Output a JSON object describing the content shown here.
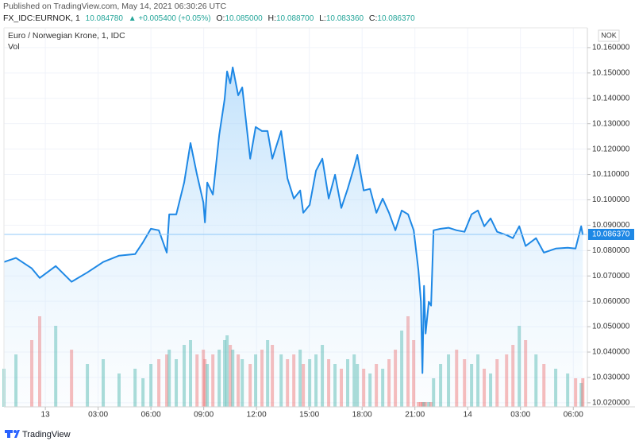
{
  "header": {
    "published": "Published on TradingView.com, May 14, 2021 06:30:26 UTC",
    "symbol": "FX_IDC:EURNOK, 1",
    "last": "10.084780",
    "change": "▲ +0.005400 (+0.05%)",
    "ohlc": [
      {
        "label": "O:",
        "value": "10.085000"
      },
      {
        "label": "H:",
        "value": "10.088700"
      },
      {
        "label": "L:",
        "value": "10.083360"
      },
      {
        "label": "C:",
        "value": "10.086370"
      }
    ]
  },
  "chart_data": {
    "type": "area",
    "currency": "NOK",
    "volume_label": "Vol",
    "x": [
      -2.35,
      -1.67,
      -0.77,
      -0.32,
      0.59,
      1.49,
      2.39,
      3.29,
      4.19,
      5.1,
      5.55,
      6.0,
      6.45,
      6.9,
      7.04,
      7.44,
      7.89,
      8.25,
      8.62,
      8.98,
      9.07,
      9.2,
      9.52,
      9.88,
      10.19,
      10.33,
      10.51,
      10.65,
      10.96,
      11.19,
      11.64,
      11.95,
      12.31,
      12.63,
      12.9,
      13.4,
      13.76,
      14.12,
      14.48,
      14.66,
      15.02,
      15.38,
      15.74,
      16.1,
      16.46,
      16.82,
      17.18,
      17.55,
      17.73,
      18.09,
      18.45,
      18.81,
      19.17,
      19.53,
      19.89,
      20.25,
      20.61,
      20.93,
      21.2,
      21.34,
      21.43,
      21.52,
      21.61,
      21.79,
      21.92,
      22.06,
      22.46,
      22.91,
      23.37,
      23.82,
      24.22,
      24.58,
      24.94,
      25.3,
      25.67,
      26.21,
      26.57,
      26.93,
      27.29,
      27.88,
      28.33,
      29.0,
      29.68,
      30.13,
      30.45,
      30.54
    ],
    "series": [
      {
        "name": "Euro / Norwegian Krone, 1, IDC",
        "color": "#1e88e5",
        "values": [
          10.0755,
          10.0771,
          10.073,
          10.0692,
          10.0739,
          10.0677,
          10.0714,
          10.0755,
          10.078,
          10.0786,
          10.0833,
          10.0886,
          10.088,
          10.0792,
          10.0943,
          10.0943,
          10.1068,
          10.1224,
          10.1099,
          10.099,
          10.0911,
          10.1068,
          10.1021,
          10.1256,
          10.1397,
          10.1506,
          10.1459,
          10.1522,
          10.1412,
          10.1443,
          10.1162,
          10.1287,
          10.1271,
          10.1271,
          10.1162,
          10.1271,
          10.1084,
          10.1005,
          10.1037,
          10.0949,
          10.098,
          10.1115,
          10.1162,
          10.1005,
          10.1099,
          10.0968,
          10.1043,
          10.113,
          10.1177,
          10.1037,
          10.1043,
          10.0949,
          10.1005,
          10.0949,
          10.088,
          10.0958,
          10.0943,
          10.088,
          10.0724,
          10.0598,
          10.0317,
          10.0661,
          10.0473,
          10.0598,
          10.0583,
          10.088,
          10.0886,
          10.089,
          10.088,
          10.0874,
          10.0943,
          10.0958,
          10.0896,
          10.0927,
          10.0874,
          10.0861,
          10.0849,
          10.0896,
          10.0818,
          10.0849,
          10.0792,
          10.0808,
          10.0811,
          10.0808,
          10.0896,
          10.0861
        ]
      }
    ],
    "volume": {
      "up_color": "#26a69a",
      "down_color": "#ef5350",
      "vlim": [
        0,
        100
      ],
      "values": [
        40,
        55,
        70,
        95,
        85,
        60,
        45,
        50,
        35,
        40,
        30,
        45,
        50,
        55,
        60,
        50,
        65,
        70,
        55,
        60,
        50,
        45,
        55,
        60,
        70,
        75,
        65,
        60,
        55,
        50,
        45,
        55,
        60,
        70,
        65,
        55,
        50,
        55,
        60,
        45,
        50,
        55,
        65,
        50,
        45,
        40,
        50,
        55,
        45,
        40,
        35,
        45,
        40,
        50,
        60,
        80,
        95,
        70,
        5,
        5,
        5,
        5,
        5,
        5,
        5,
        30,
        45,
        55,
        60,
        50,
        45,
        55,
        40,
        35,
        50,
        55,
        65,
        85,
        70,
        55,
        45,
        40,
        35,
        30,
        25,
        30
      ]
    },
    "last_price": {
      "value": 10.08637,
      "label": "10.086370"
    },
    "xlim": [
      -2.35,
      30.8
    ],
    "xticks": [
      {
        "value": 0,
        "label": "13"
      },
      {
        "value": 3,
        "label": "03:00"
      },
      {
        "value": 6,
        "label": "06:00"
      },
      {
        "value": 9,
        "label": "09:00"
      },
      {
        "value": 12,
        "label": "12:00"
      },
      {
        "value": 15,
        "label": "15:00"
      },
      {
        "value": 18,
        "label": "18:00"
      },
      {
        "value": 21,
        "label": "21:00"
      },
      {
        "value": 24,
        "label": "14"
      },
      {
        "value": 27,
        "label": "03:00"
      },
      {
        "value": 30,
        "label": "06:00"
      }
    ],
    "ylim": [
      10.0184,
      10.1678
    ],
    "yticks": [
      {
        "value": 10.02,
        "label": "10.020000"
      },
      {
        "value": 10.03,
        "label": "10.030000"
      },
      {
        "value": 10.04,
        "label": "10.040000"
      },
      {
        "value": 10.05,
        "label": "10.050000"
      },
      {
        "value": 10.06,
        "label": "10.060000"
      },
      {
        "value": 10.07,
        "label": "10.070000"
      },
      {
        "value": 10.08,
        "label": "10.080000"
      },
      {
        "value": 10.09,
        "label": "10.090000"
      },
      {
        "value": 10.1,
        "label": "10.100000"
      },
      {
        "value": 10.11,
        "label": "10.110000"
      },
      {
        "value": 10.12,
        "label": "10.120000"
      },
      {
        "value": 10.13,
        "label": "10.130000"
      },
      {
        "value": 10.14,
        "label": "10.140000"
      },
      {
        "value": 10.15,
        "label": "10.150000"
      },
      {
        "value": 10.16,
        "label": "10.160000"
      }
    ],
    "grid": true
  },
  "footer": {
    "brand": "TradingView"
  }
}
